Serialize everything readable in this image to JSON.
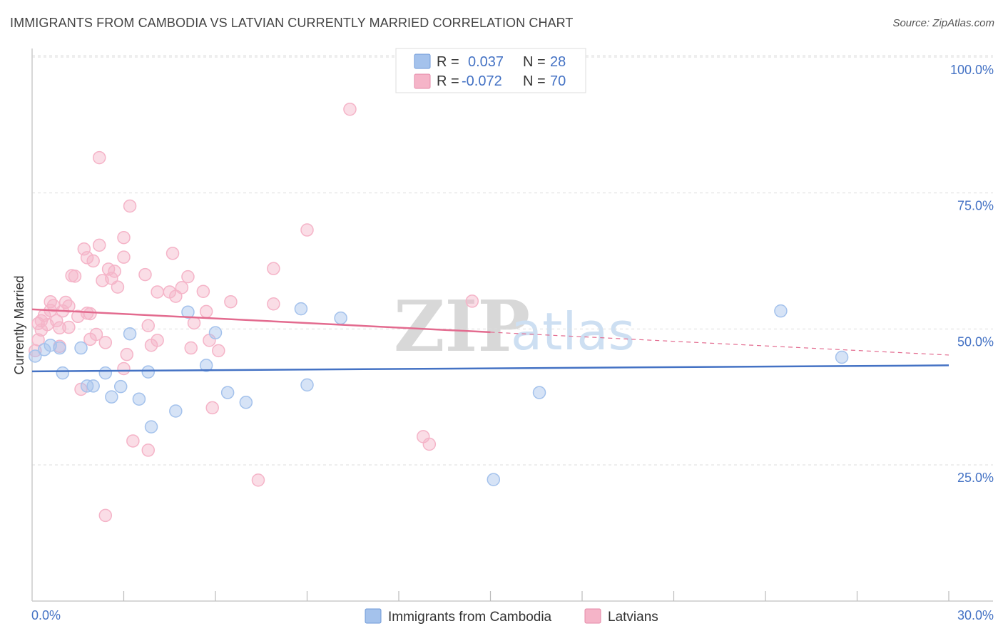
{
  "title": "IMMIGRANTS FROM CAMBODIA VS LATVIAN CURRENTLY MARRIED CORRELATION CHART",
  "source": "Source: ZipAtlas.com",
  "watermark": {
    "zip": "ZIP",
    "atlas": "atlas"
  },
  "legend": {
    "r_label": "R =",
    "n_label": "N =",
    "rows": [
      {
        "r": "0.037",
        "n": "28",
        "color": "#a4c2ec"
      },
      {
        "r": "-0.072",
        "n": "70",
        "color": "#f5b4c8"
      }
    ]
  },
  "bottom_legend": [
    "Immigrants from Cambodia",
    "Latvians"
  ],
  "chart_data": {
    "type": "scatter",
    "title": "IMMIGRANTS FROM CAMBODIA VS LATVIAN CURRENTLY MARRIED CORRELATION CHART",
    "xlabel": "",
    "ylabel": "Currently Married",
    "xlim": [
      0,
      30
    ],
    "ylim": [
      0,
      102
    ],
    "x_tick_labels": [
      "0.0%",
      "30.0%"
    ],
    "y_ticks": [
      25,
      50,
      75,
      100
    ],
    "y_tick_labels": [
      "25.0%",
      "50.0%",
      "75.0%",
      "100.0%"
    ],
    "series": [
      {
        "name": "Immigrants from Cambodia",
        "color": "#4472c4",
        "fill": "#a4c2ec",
        "trend": {
          "x0": 0,
          "y0": 42.2,
          "x1": 30,
          "y1": 43.3
        },
        "points": [
          [
            0.1,
            45.0
          ],
          [
            0.4,
            46.2
          ],
          [
            0.9,
            46.5
          ],
          [
            1.0,
            41.9
          ],
          [
            1.6,
            46.5
          ],
          [
            1.8,
            39.5
          ],
          [
            2.0,
            39.5
          ],
          [
            2.4,
            41.9
          ],
          [
            2.6,
            37.5
          ],
          [
            2.9,
            39.4
          ],
          [
            3.2,
            49.1
          ],
          [
            3.5,
            37.1
          ],
          [
            3.8,
            42.1
          ],
          [
            3.9,
            32.0
          ],
          [
            4.7,
            34.9
          ],
          [
            5.1,
            53.1
          ],
          [
            5.7,
            43.3
          ],
          [
            6.0,
            49.3
          ],
          [
            6.4,
            38.3
          ],
          [
            7.0,
            36.5
          ],
          [
            8.8,
            53.7
          ],
          [
            9.0,
            39.7
          ],
          [
            10.1,
            52.0
          ],
          [
            15.1,
            22.3
          ],
          [
            16.6,
            38.3
          ],
          [
            24.5,
            53.3
          ],
          [
            26.5,
            44.8
          ],
          [
            0.6,
            47.0
          ]
        ]
      },
      {
        "name": "Latvians",
        "color": "#e36b8f",
        "fill": "#f5b4c8",
        "trend": {
          "x0": 0,
          "y0": 53.6,
          "x1": 15,
          "y1": 49.4
        },
        "trend_ext": {
          "x0": 15,
          "y0": 49.4,
          "x1": 30,
          "y1": 45.2
        },
        "points": [
          [
            0.1,
            46.0
          ],
          [
            0.2,
            48.0
          ],
          [
            0.2,
            51.0
          ],
          [
            0.3,
            51.5
          ],
          [
            0.4,
            52.5
          ],
          [
            0.5,
            50.8
          ],
          [
            0.6,
            55.0
          ],
          [
            0.6,
            53.4
          ],
          [
            0.7,
            54.3
          ],
          [
            0.8,
            51.5
          ],
          [
            0.9,
            50.2
          ],
          [
            0.9,
            46.8
          ],
          [
            1.0,
            53.3
          ],
          [
            1.1,
            54.9
          ],
          [
            1.2,
            54.2
          ],
          [
            1.2,
            50.3
          ],
          [
            1.3,
            59.8
          ],
          [
            1.4,
            59.7
          ],
          [
            1.5,
            52.3
          ],
          [
            1.6,
            38.9
          ],
          [
            1.7,
            64.7
          ],
          [
            1.8,
            63.1
          ],
          [
            1.8,
            52.9
          ],
          [
            1.9,
            48.1
          ],
          [
            1.9,
            52.8
          ],
          [
            2.0,
            62.5
          ],
          [
            2.1,
            49.0
          ],
          [
            2.2,
            65.4
          ],
          [
            2.2,
            81.5
          ],
          [
            2.3,
            58.9
          ],
          [
            2.4,
            47.5
          ],
          [
            2.4,
            15.7
          ],
          [
            2.5,
            61.0
          ],
          [
            2.6,
            59.3
          ],
          [
            2.7,
            60.6
          ],
          [
            2.8,
            57.7
          ],
          [
            3.0,
            42.7
          ],
          [
            3.0,
            63.2
          ],
          [
            3.0,
            66.8
          ],
          [
            3.1,
            45.3
          ],
          [
            3.2,
            72.6
          ],
          [
            3.3,
            29.4
          ],
          [
            3.7,
            60.0
          ],
          [
            3.8,
            50.6
          ],
          [
            3.8,
            27.7
          ],
          [
            3.9,
            47.0
          ],
          [
            4.1,
            56.8
          ],
          [
            4.1,
            47.9
          ],
          [
            4.5,
            56.8
          ],
          [
            4.6,
            63.9
          ],
          [
            4.7,
            56.0
          ],
          [
            4.9,
            57.6
          ],
          [
            5.1,
            59.6
          ],
          [
            5.2,
            46.5
          ],
          [
            5.3,
            51.1
          ],
          [
            5.6,
            56.9
          ],
          [
            5.7,
            53.2
          ],
          [
            5.8,
            47.9
          ],
          [
            5.9,
            35.5
          ],
          [
            6.1,
            46.0
          ],
          [
            6.5,
            55.0
          ],
          [
            7.4,
            22.2
          ],
          [
            7.9,
            61.1
          ],
          [
            7.9,
            54.6
          ],
          [
            9.0,
            68.2
          ],
          [
            10.4,
            90.4
          ],
          [
            12.8,
            30.2
          ],
          [
            13.0,
            28.8
          ],
          [
            14.4,
            55.1
          ],
          [
            0.3,
            49.8
          ]
        ]
      }
    ]
  }
}
